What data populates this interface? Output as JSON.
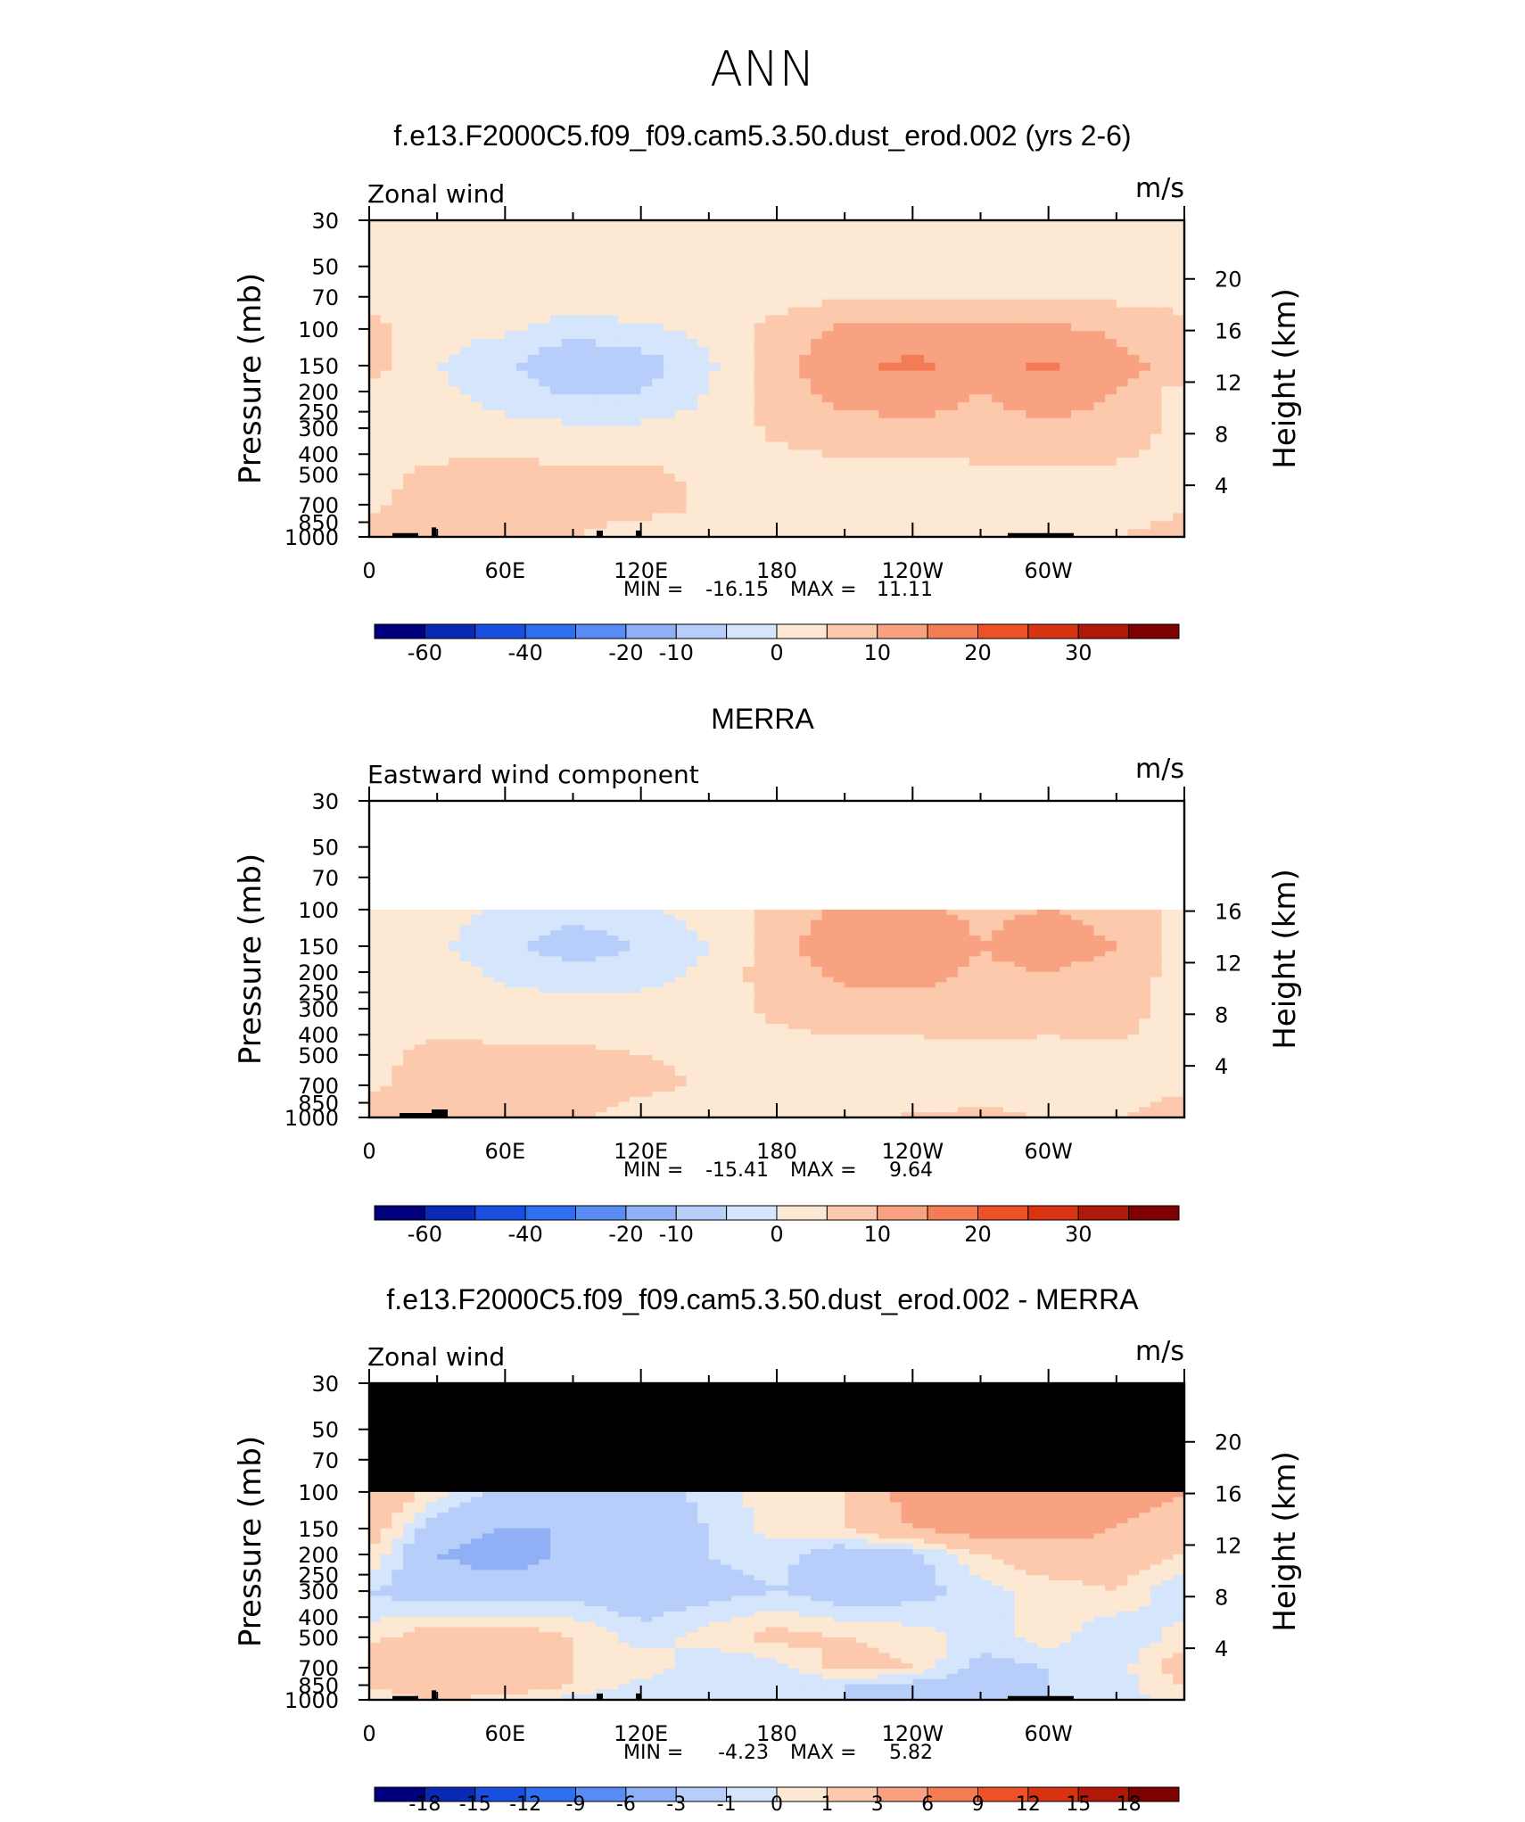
{
  "page": {
    "title": "ANN"
  },
  "palette": {
    "ab12": [
      "#00007f",
      "#0a29b4",
      "#1a4ee0",
      "#2e6ef0",
      "#5a8cf5",
      "#8fb0f5",
      "#b7cdfa",
      "#d5e5fc",
      "#fde8d3",
      "#fcc9ad",
      "#f8a282",
      "#f47c55",
      "#ee5027",
      "#d93412",
      "#b0180a",
      "#7f0000"
    ],
    "diff": [
      "#00007f",
      "#0a29b4",
      "#1a4ee0",
      "#2e6ef0",
      "#5a8cf5",
      "#8fb0f5",
      "#b7cdfa",
      "#d5e5fc",
      "#fde8d3",
      "#fcc9ad",
      "#f8a282",
      "#f47c55",
      "#ee5027",
      "#d93412",
      "#b0180a",
      "#7f0000"
    ]
  },
  "chart_data": [
    {
      "type": "heatmap",
      "panel_title": "f.e13.F2000C5.f09_f09.cam5.3.50.dust_erod.002 (yrs 2-6)",
      "left_label": "Zonal wind",
      "units": "m/s",
      "xlabel": "",
      "ylabel": "Pressure (mb)",
      "y2label": "Height (km)",
      "x_ticklabels": [
        "0",
        "60E",
        "120E",
        "180",
        "120W",
        "60W"
      ],
      "y_ticklabels": [
        "30",
        "50",
        "70",
        "100",
        "150",
        "200",
        "250",
        "300",
        "400",
        "500",
        "700",
        "850",
        "1000"
      ],
      "y2_ticklabels": [
        "20",
        "16",
        "12",
        "8",
        "4"
      ],
      "ylim": [
        1000,
        30
      ],
      "stats": {
        "min_label": "MIN =",
        "min": "-16.15",
        "max_label": "MAX =",
        "max": "11.11"
      },
      "colorbar": {
        "labels": [
          "-60",
          "-40",
          "-20",
          "-10",
          "0",
          "10",
          "20",
          "30"
        ]
      },
      "field": {
        "lon": [
          0,
          30,
          60,
          90,
          120,
          150,
          180,
          210,
          240,
          270,
          300,
          330,
          360
        ],
        "p": [
          30,
          50,
          70,
          100,
          150,
          200,
          300,
          500,
          700,
          850,
          1000
        ],
        "u": [
          [
            -2,
            -2,
            -2,
            -2,
            -2,
            -2,
            -2,
            -2,
            -2,
            -2,
            -2,
            -2,
            -2
          ],
          [
            -3,
            -3,
            -3,
            -3,
            -3,
            -3,
            -3,
            -3,
            -3,
            -3,
            -3,
            -3,
            -3
          ],
          [
            -2,
            -2,
            -2,
            -1,
            -1,
            -1,
            -2,
            -1,
            -1,
            -1,
            -1,
            -1,
            -2
          ],
          [
            2,
            -3,
            -4,
            -8,
            -6,
            -3,
            2,
            6,
            7,
            6,
            6,
            4,
            2
          ],
          [
            3,
            -5,
            -9,
            -15,
            -13,
            -6,
            3,
            9,
            11,
            8,
            11,
            7,
            3
          ],
          [
            -2,
            -4,
            -7,
            -11,
            -10,
            -5,
            3,
            7,
            8,
            5,
            8,
            5,
            -2
          ],
          [
            -2,
            -3,
            -4,
            -4,
            -4,
            -3,
            1,
            3,
            4,
            3,
            4,
            3,
            -2
          ],
          [
            -1,
            1,
            2,
            1,
            1,
            -1,
            -2,
            -2,
            -2,
            -1,
            -1,
            -1,
            -1
          ],
          [
            -1,
            2,
            3,
            4,
            3,
            -1,
            -2,
            -3,
            -3,
            -2,
            -2,
            -2,
            -1
          ],
          [
            1,
            2,
            2,
            1,
            -1,
            -2,
            -2,
            -4,
            -3,
            -2,
            -1,
            -1,
            1
          ],
          [
            1,
            1,
            1,
            0,
            -1,
            -2,
            -2,
            -3,
            -2,
            -1,
            -1,
            0,
            1
          ]
        ]
      }
    },
    {
      "type": "heatmap",
      "panel_title": "MERRA",
      "left_label": "Eastward wind component",
      "units": "m/s",
      "xlabel": "",
      "ylabel": "Pressure (mb)",
      "y2label": "Height (km)",
      "x_ticklabels": [
        "0",
        "60E",
        "120E",
        "180",
        "120W",
        "60W"
      ],
      "y_ticklabels": [
        "30",
        "50",
        "70",
        "100",
        "150",
        "200",
        "250",
        "300",
        "400",
        "500",
        "700",
        "850",
        "1000"
      ],
      "y2_ticklabels": [
        "16",
        "12",
        "8",
        "4"
      ],
      "ylim": [
        1000,
        30
      ],
      "stats": {
        "min_label": "MIN =",
        "min": "-15.41",
        "max_label": "MAX =",
        "max": "9.64"
      },
      "colorbar": {
        "labels": [
          "-60",
          "-40",
          "-20",
          "-10",
          "0",
          "10",
          "20",
          "30"
        ]
      },
      "field": {
        "lon": [
          0,
          30,
          60,
          90,
          120,
          150,
          180,
          210,
          240,
          270,
          300,
          330,
          360
        ],
        "p": [
          100,
          150,
          200,
          300,
          500,
          700,
          850,
          1000
        ],
        "u": [
          [
            -2,
            -3,
            -6,
            -8,
            -6,
            -3,
            2,
            6,
            6,
            4,
            5,
            3,
            -2
          ],
          [
            -2,
            -4,
            -9,
            -13,
            -10,
            -5,
            3,
            9,
            9,
            5,
            8,
            5,
            -2
          ],
          [
            -2,
            -3,
            -6,
            -8,
            -7,
            -4,
            3,
            6,
            7,
            4,
            5,
            3,
            -2
          ],
          [
            -2,
            -2,
            -3,
            -3,
            -3,
            -2,
            1,
            3,
            3,
            2,
            3,
            2,
            -2
          ],
          [
            -1,
            1,
            1,
            1,
            0,
            -1,
            -2,
            -2,
            -2,
            -1,
            -2,
            -1,
            -1
          ],
          [
            -1,
            2,
            3,
            4,
            2,
            -1,
            -2,
            -3,
            -3,
            -2,
            -2,
            -2,
            -1
          ],
          [
            1,
            2,
            2,
            2,
            -1,
            -2,
            -2,
            -3,
            -2,
            -1,
            -1,
            -1,
            1
          ],
          [
            1,
            1,
            1,
            0,
            -1,
            -2,
            -2,
            -2,
            1,
            2,
            -1,
            0,
            1
          ]
        ]
      }
    },
    {
      "type": "heatmap",
      "panel_title": "f.e13.F2000C5.f09_f09.cam5.3.50.dust_erod.002 - MERRA",
      "left_label": "Zonal wind",
      "units": "m/s",
      "xlabel": "",
      "ylabel": "Pressure (mb)",
      "y2label": "Height (km)",
      "x_ticklabels": [
        "0",
        "60E",
        "120E",
        "180",
        "120W",
        "60W"
      ],
      "y_ticklabels": [
        "30",
        "50",
        "70",
        "100",
        "150",
        "200",
        "250",
        "300",
        "400",
        "500",
        "700",
        "850",
        "1000"
      ],
      "y2_ticklabels": [
        "20",
        "16",
        "12",
        "8",
        "4"
      ],
      "ylim": [
        1000,
        30
      ],
      "stats": {
        "min_label": "MIN =",
        "min": "-4.23",
        "max_label": "MAX =",
        "max": "5.82"
      },
      "colorbar": {
        "labels": [
          "-18",
          "-15",
          "-12",
          "-9",
          "-6",
          "-3",
          "-1",
          "0",
          "1",
          "3",
          "6",
          "9",
          "12",
          "15",
          "18"
        ]
      },
      "missing_above_p": 100,
      "field": {
        "lon": [
          0,
          30,
          60,
          90,
          120,
          150,
          180,
          210,
          240,
          270,
          300,
          330,
          360
        ],
        "p": [
          100,
          150,
          200,
          300,
          500,
          700,
          850,
          1000
        ],
        "u": [
          [
            3,
            0.5,
            -1.5,
            -2,
            -2,
            -0.5,
            0.5,
            1,
            4,
            4,
            4,
            4,
            3
          ],
          [
            2,
            -2,
            -3,
            -3,
            -2,
            -1,
            0.5,
            1,
            3,
            4,
            4,
            3,
            2
          ],
          [
            1,
            -3,
            -4,
            -2.5,
            -2,
            -1,
            -0.5,
            -2,
            -1.5,
            1,
            2,
            2,
            1
          ],
          [
            -1,
            -2,
            -2,
            -1.5,
            -2,
            -1.5,
            -1,
            -2,
            -1.5,
            -0.5,
            0.5,
            1,
            -1
          ],
          [
            0.5,
            2,
            2,
            1,
            -0.5,
            0.5,
            1.5,
            1,
            0.5,
            -0.5,
            0.5,
            -1,
            0.5
          ],
          [
            2,
            3,
            2,
            1,
            1,
            -1,
            -0.5,
            1.5,
            1,
            -1.5,
            -1,
            -0.5,
            2
          ],
          [
            1,
            2,
            2,
            1,
            -0.5,
            -1,
            -0.5,
            -1,
            -1.5,
            -2,
            -1,
            -0.5,
            1
          ],
          [
            0.5,
            1,
            0.5,
            -0.5,
            -1,
            -0.5,
            -0.5,
            -1,
            -1.5,
            -2,
            -1,
            -0.5,
            0.5
          ]
        ]
      }
    }
  ]
}
